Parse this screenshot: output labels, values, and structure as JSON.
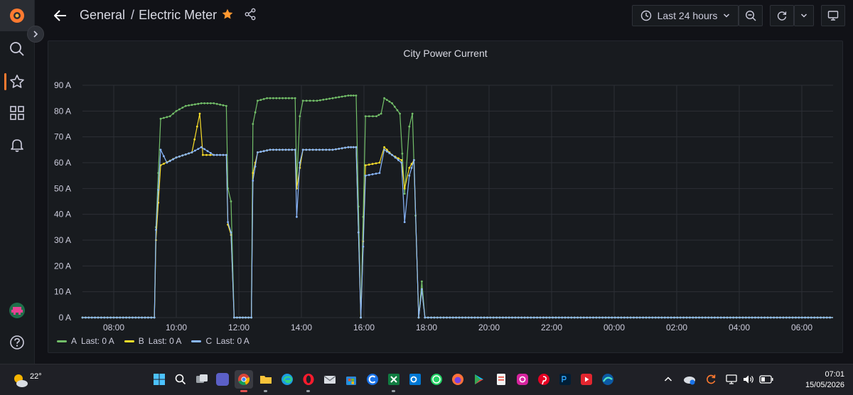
{
  "header": {
    "folder": "General",
    "separator": "/",
    "dashboard": "Electric Meter",
    "time_range": "Last 24 hours"
  },
  "colors": {
    "accent": "#ff7a30",
    "series_a": "#73bf69",
    "series_b": "#fade2a",
    "series_c": "#8ab8ff",
    "star": "#ff9830"
  },
  "panel": {
    "title": "City Power Current"
  },
  "chart_data": {
    "type": "line",
    "title": "City Power Current",
    "xlabel": "",
    "ylabel": "",
    "unit": "A",
    "ylim": [
      0,
      90
    ],
    "yticks": [
      "0 A",
      "10 A",
      "20 A",
      "30 A",
      "40 A",
      "50 A",
      "60 A",
      "70 A",
      "80 A",
      "90 A"
    ],
    "xticks": [
      "08:00",
      "10:00",
      "12:00",
      "14:00",
      "16:00",
      "18:00",
      "20:00",
      "22:00",
      "00:00",
      "02:00",
      "04:00",
      "06:00"
    ],
    "x_range_hours": [
      7.0,
      31.0
    ],
    "grid": true,
    "legend_position": "bottom-left",
    "series": [
      {
        "name": "A",
        "legend": "Last: 0 A",
        "color": "#73bf69",
        "points": [
          [
            7.0,
            0
          ],
          [
            9.3,
            0
          ],
          [
            9.35,
            35
          ],
          [
            9.5,
            77
          ],
          [
            9.8,
            78
          ],
          [
            10.0,
            80
          ],
          [
            10.3,
            82
          ],
          [
            10.8,
            83
          ],
          [
            11.2,
            83
          ],
          [
            11.6,
            82
          ],
          [
            11.65,
            50
          ],
          [
            11.75,
            45
          ],
          [
            11.85,
            0
          ],
          [
            12.4,
            0
          ],
          [
            12.45,
            75
          ],
          [
            12.6,
            84
          ],
          [
            12.9,
            85
          ],
          [
            13.3,
            85
          ],
          [
            13.8,
            85
          ],
          [
            13.85,
            52
          ],
          [
            13.95,
            78
          ],
          [
            14.05,
            84
          ],
          [
            14.5,
            84
          ],
          [
            15.0,
            85
          ],
          [
            15.5,
            86
          ],
          [
            15.75,
            86
          ],
          [
            15.9,
            0
          ],
          [
            16.05,
            78
          ],
          [
            16.4,
            78
          ],
          [
            16.55,
            79
          ],
          [
            16.65,
            85
          ],
          [
            16.9,
            83
          ],
          [
            17.15,
            79
          ],
          [
            17.3,
            48
          ],
          [
            17.45,
            74
          ],
          [
            17.55,
            79
          ],
          [
            17.75,
            0
          ],
          [
            17.85,
            14
          ],
          [
            17.95,
            0
          ],
          [
            31.0,
            0
          ]
        ]
      },
      {
        "name": "B",
        "legend": "Last: 0 A",
        "color": "#fade2a",
        "points": [
          [
            7.0,
            0
          ],
          [
            9.3,
            0
          ],
          [
            9.35,
            30
          ],
          [
            9.5,
            59
          ],
          [
            10.0,
            62
          ],
          [
            10.5,
            64
          ],
          [
            10.75,
            79
          ],
          [
            10.85,
            63
          ],
          [
            11.2,
            63
          ],
          [
            11.6,
            63
          ],
          [
            11.65,
            36
          ],
          [
            11.75,
            32
          ],
          [
            11.85,
            0
          ],
          [
            12.4,
            0
          ],
          [
            12.45,
            56
          ],
          [
            12.6,
            64
          ],
          [
            13.0,
            65
          ],
          [
            13.8,
            65
          ],
          [
            13.85,
            50
          ],
          [
            13.95,
            58
          ],
          [
            14.05,
            65
          ],
          [
            15.0,
            65
          ],
          [
            15.5,
            66
          ],
          [
            15.75,
            66
          ],
          [
            15.9,
            0
          ],
          [
            16.05,
            59
          ],
          [
            16.5,
            60
          ],
          [
            16.65,
            66
          ],
          [
            16.9,
            63
          ],
          [
            17.2,
            61
          ],
          [
            17.3,
            50
          ],
          [
            17.45,
            58
          ],
          [
            17.6,
            61
          ],
          [
            17.75,
            0
          ],
          [
            17.85,
            11
          ],
          [
            17.95,
            0
          ],
          [
            31.0,
            0
          ]
        ]
      },
      {
        "name": "C",
        "legend": "Last: 0 A",
        "color": "#8ab8ff",
        "points": [
          [
            7.0,
            0
          ],
          [
            9.3,
            0
          ],
          [
            9.35,
            34
          ],
          [
            9.5,
            65
          ],
          [
            9.7,
            60
          ],
          [
            10.0,
            62
          ],
          [
            10.5,
            64
          ],
          [
            10.8,
            66
          ],
          [
            11.2,
            63
          ],
          [
            11.6,
            63
          ],
          [
            11.65,
            37
          ],
          [
            11.75,
            33
          ],
          [
            11.85,
            0
          ],
          [
            12.4,
            0
          ],
          [
            12.45,
            53
          ],
          [
            12.6,
            64
          ],
          [
            13.0,
            65
          ],
          [
            13.8,
            65
          ],
          [
            13.85,
            39
          ],
          [
            13.95,
            60
          ],
          [
            14.05,
            65
          ],
          [
            15.0,
            65
          ],
          [
            15.5,
            66
          ],
          [
            15.75,
            66
          ],
          [
            15.9,
            0
          ],
          [
            16.05,
            55
          ],
          [
            16.5,
            56
          ],
          [
            16.65,
            65
          ],
          [
            16.9,
            63
          ],
          [
            17.2,
            60
          ],
          [
            17.3,
            37
          ],
          [
            17.45,
            55
          ],
          [
            17.6,
            61
          ],
          [
            17.75,
            0
          ],
          [
            17.85,
            11
          ],
          [
            17.95,
            0
          ],
          [
            31.0,
            0
          ]
        ]
      }
    ]
  },
  "taskbar": {
    "weather_temp": "22°",
    "time": "07:01",
    "date": "15/05/2026"
  }
}
